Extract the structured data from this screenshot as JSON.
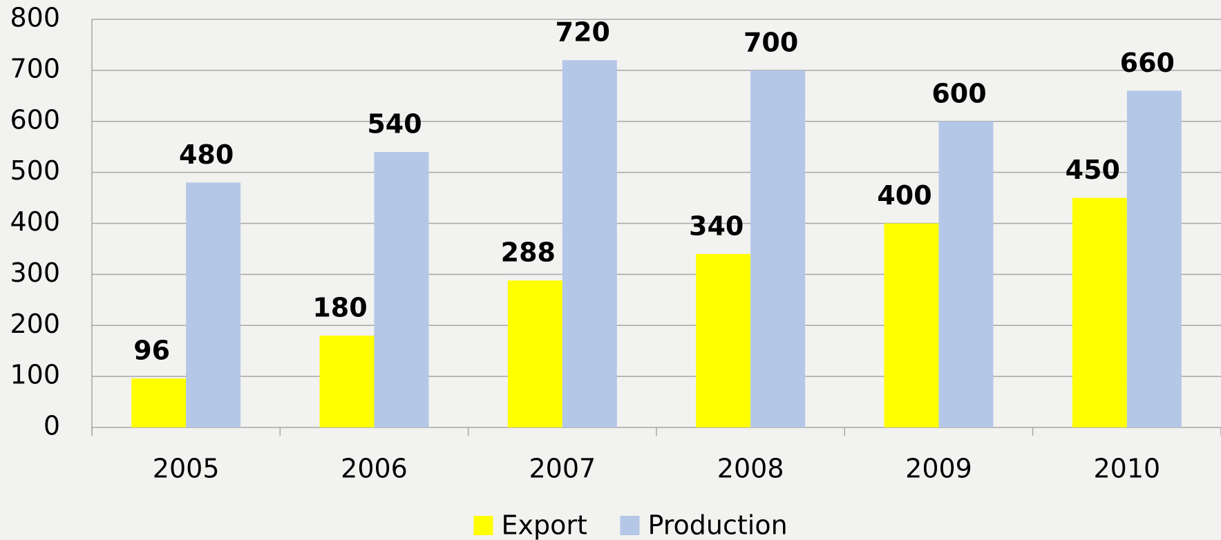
{
  "chart_data": {
    "type": "bar",
    "categories": [
      "2005",
      "2006",
      "2007",
      "2008",
      "2009",
      "2010"
    ],
    "series": [
      {
        "name": "Export",
        "color": "#ffff00",
        "values": [
          96,
          180,
          288,
          340,
          400,
          450
        ]
      },
      {
        "name": "Production",
        "color": "#b4c7e7",
        "values": [
          480,
          540,
          720,
          700,
          600,
          660
        ]
      }
    ],
    "ylim": [
      0,
      800
    ],
    "yticks": [
      0,
      100,
      200,
      300,
      400,
      500,
      600,
      700,
      800
    ],
    "grid": true,
    "legend": "bottom"
  }
}
